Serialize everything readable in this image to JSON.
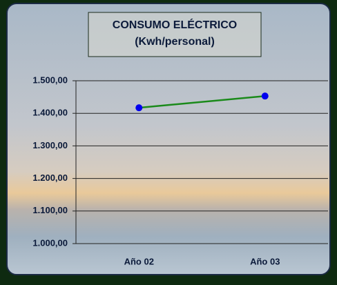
{
  "chart_data": {
    "type": "line",
    "title": "CONSUMO ELÉCTRICO",
    "subtitle": "(Kwh/personal)",
    "categories": [
      "Año 02",
      "Año 03"
    ],
    "series": [
      {
        "color": "#1a8a1a",
        "marker_color": "#0000ee",
        "values": [
          1417,
          1453
        ]
      }
    ],
    "ylim": [
      1000,
      1500
    ],
    "yticks": [
      {
        "value": 1000,
        "label": "1.000,00"
      },
      {
        "value": 1100,
        "label": "1.100,00"
      },
      {
        "value": 1200,
        "label": "1.200,00"
      },
      {
        "value": 1300,
        "label": "1.300,00"
      },
      {
        "value": 1400,
        "label": "1.400,00"
      },
      {
        "value": 1500,
        "label": "1.500,00"
      }
    ],
    "grid": true
  }
}
